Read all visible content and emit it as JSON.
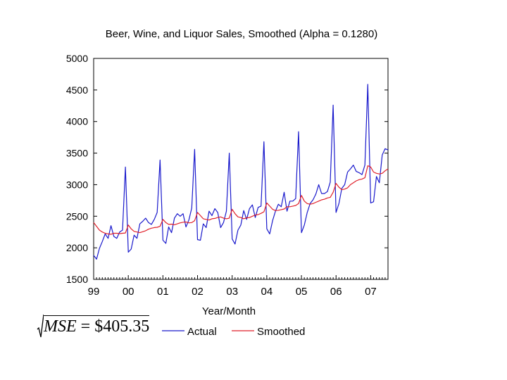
{
  "chart_data": {
    "type": "line",
    "title": "Beer, Wine, and Liquor Sales, Smoothed (Alpha = 0.1280)",
    "xlabel": "Year/Month",
    "ylabel": "",
    "ylim": [
      1500,
      5000
    ],
    "yticks": [
      "1500",
      "2000",
      "2500",
      "3000",
      "3500",
      "4000",
      "4500",
      "5000"
    ],
    "ytick_values": [
      1500,
      2000,
      2500,
      3000,
      3500,
      4000,
      4500,
      5000
    ],
    "xticks": [
      "99",
      "00",
      "01",
      "02",
      "03",
      "04",
      "05",
      "06",
      "07"
    ],
    "x_start": 1999.0,
    "x_end": 2007.5,
    "grid": false,
    "legend_position": "bottom",
    "series": [
      {
        "name": "Actual",
        "color": "#1a1acc",
        "values": [
          1880,
          1820,
          1990,
          2100,
          2220,
          2150,
          2350,
          2180,
          2150,
          2250,
          2280,
          3280,
          1930,
          1980,
          2200,
          2150,
          2380,
          2420,
          2470,
          2400,
          2370,
          2450,
          2560,
          3390,
          2120,
          2070,
          2330,
          2240,
          2470,
          2540,
          2500,
          2540,
          2330,
          2440,
          2630,
          3560,
          2130,
          2120,
          2380,
          2320,
          2580,
          2510,
          2620,
          2560,
          2320,
          2400,
          2580,
          3500,
          2140,
          2060,
          2280,
          2360,
          2590,
          2450,
          2620,
          2680,
          2480,
          2640,
          2660,
          3680,
          2300,
          2220,
          2430,
          2580,
          2690,
          2650,
          2880,
          2580,
          2740,
          2740,
          2780,
          3840,
          2240,
          2360,
          2560,
          2700,
          2760,
          2850,
          3000,
          2860,
          2860,
          2890,
          3040,
          4260,
          2560,
          2700,
          2940,
          3000,
          3200,
          3250,
          3310,
          3210,
          3190,
          3160,
          3310,
          4590,
          2710,
          2730,
          3130,
          3030,
          3470,
          3570,
          3550
        ]
      },
      {
        "name": "Smoothed",
        "color": "#e0202a",
        "values": [
          2400,
          2340,
          2280,
          2250,
          2230,
          2220,
          2215,
          2230,
          2230,
          2225,
          2230,
          2235,
          2360,
          2300,
          2260,
          2250,
          2240,
          2255,
          2270,
          2295,
          2310,
          2320,
          2325,
          2340,
          2450,
          2400,
          2370,
          2375,
          2365,
          2380,
          2395,
          2405,
          2410,
          2395,
          2400,
          2430,
          2560,
          2510,
          2460,
          2450,
          2440,
          2460,
          2465,
          2480,
          2490,
          2470,
          2460,
          2470,
          2610,
          2540,
          2490,
          2480,
          2460,
          2475,
          2480,
          2500,
          2520,
          2525,
          2545,
          2570,
          2710,
          2660,
          2610,
          2590,
          2595,
          2605,
          2615,
          2650,
          2650,
          2660,
          2670,
          2700,
          2830,
          2740,
          2700,
          2690,
          2700,
          2720,
          2740,
          2760,
          2770,
          2790,
          2800,
          2880,
          3020,
          2960,
          2920,
          2930,
          2950,
          3000,
          3030,
          3060,
          3080,
          3090,
          3110,
          3300,
          3280,
          3200,
          3180,
          3170,
          3180,
          3220,
          3250
        ]
      }
    ]
  },
  "formula": {
    "lhs": "MSE",
    "eq": " = $405.35"
  }
}
